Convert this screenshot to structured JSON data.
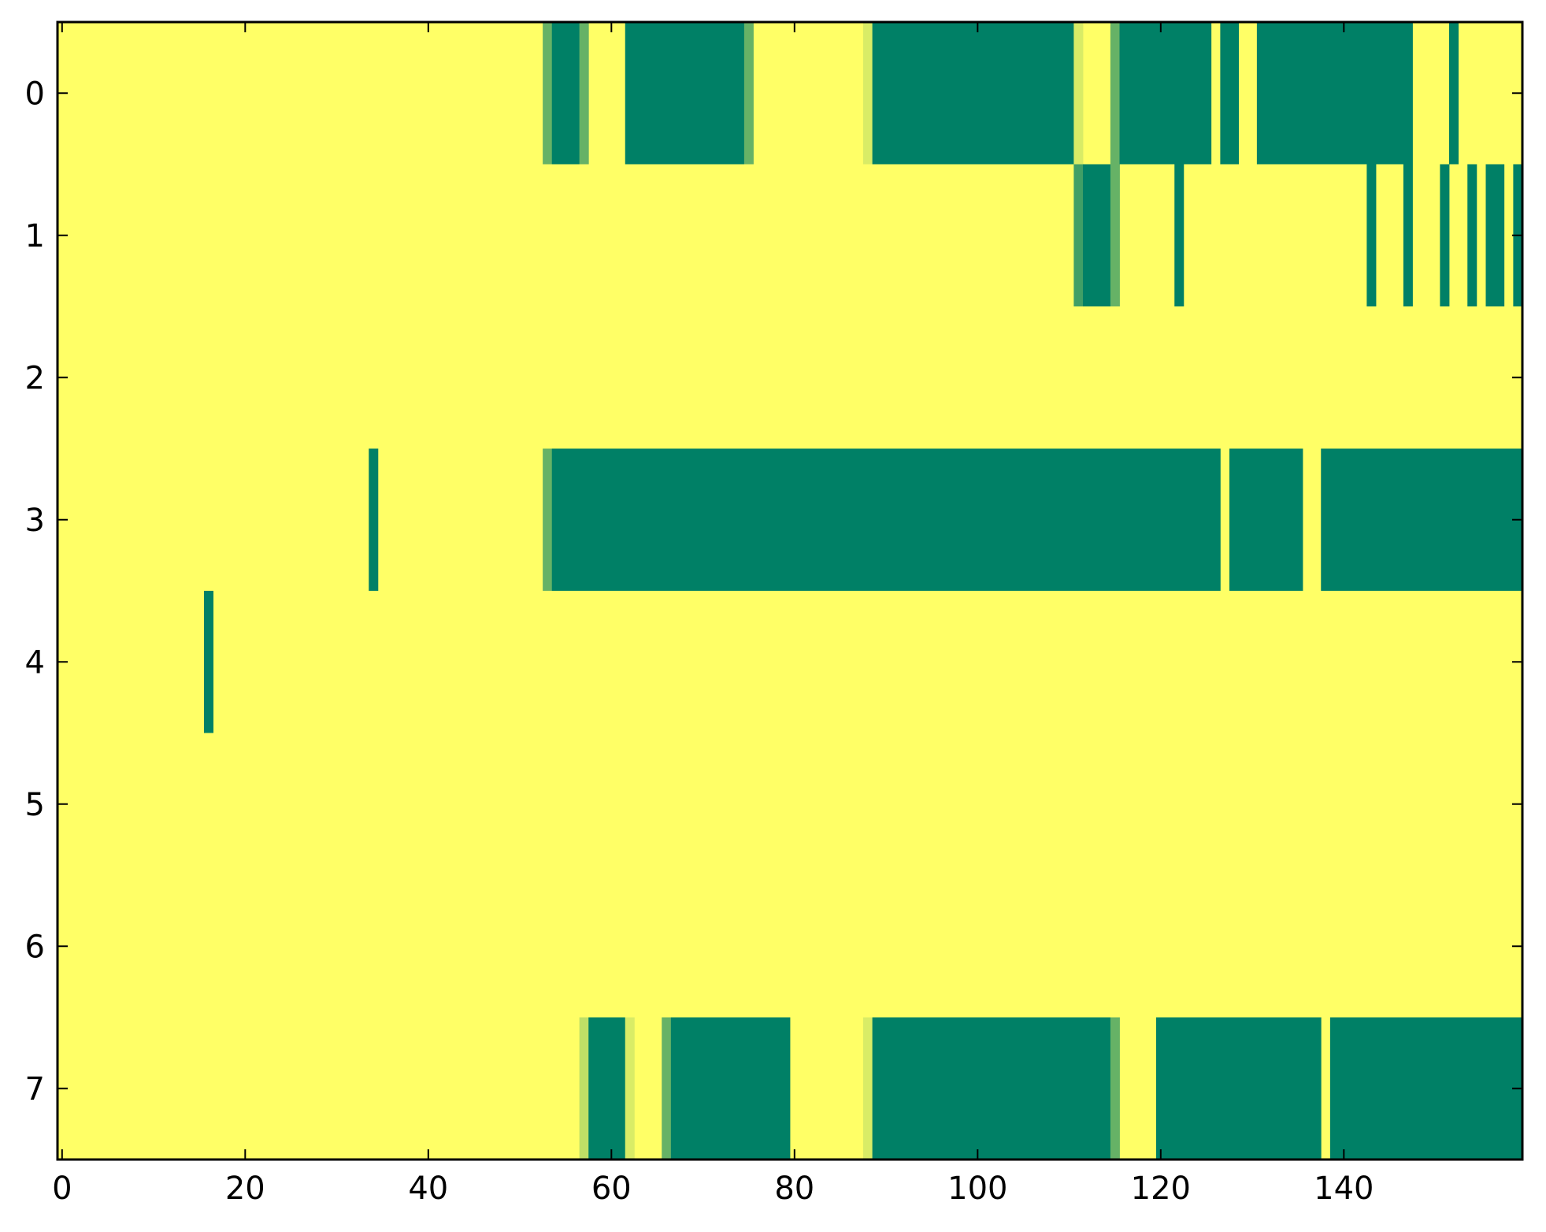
{
  "chart_data": {
    "type": "heatmap",
    "title": "",
    "xlabel": "",
    "ylabel": "",
    "xlim": [
      -0.5,
      159.5
    ],
    "ylim": [
      -0.5,
      7.5
    ],
    "y_inverted": true,
    "xticks": [
      0,
      20,
      40,
      60,
      80,
      100,
      120,
      140
    ],
    "xtick_labels": [
      "0",
      "20",
      "40",
      "60",
      "80",
      "100",
      "120",
      "140"
    ],
    "yticks": [
      0,
      1,
      2,
      3,
      4,
      5,
      6,
      7
    ],
    "ytick_labels": [
      "0",
      "1",
      "2",
      "3",
      "4",
      "5",
      "6",
      "7"
    ],
    "grid": false,
    "legend": "none",
    "colormap": "summer",
    "background_value": 1.0,
    "background_color": "#ffff66",
    "value_colors": {
      "0.0": "#008066",
      "0.25": "#409f66",
      "0.4": "#66b266",
      "0.75": "#bfdf66",
      "0.85": "#d9ec66",
      "1.0": "#ffff66"
    },
    "segments": [
      {
        "row": 0,
        "x_start": 53,
        "x_end": 53,
        "value": 0.4
      },
      {
        "row": 0,
        "x_start": 54,
        "x_end": 56,
        "value": 0.0
      },
      {
        "row": 0,
        "x_start": 57,
        "x_end": 57,
        "value": 0.4
      },
      {
        "row": 0,
        "x_start": 62,
        "x_end": 74,
        "value": 0.0
      },
      {
        "row": 0,
        "x_start": 75,
        "x_end": 75,
        "value": 0.4
      },
      {
        "row": 0,
        "x_start": 88,
        "x_end": 88,
        "value": 0.85
      },
      {
        "row": 0,
        "x_start": 89,
        "x_end": 110,
        "value": 0.0
      },
      {
        "row": 0,
        "x_start": 111,
        "x_end": 111,
        "value": 0.85
      },
      {
        "row": 0,
        "x_start": 115,
        "x_end": 115,
        "value": 0.4
      },
      {
        "row": 0,
        "x_start": 116,
        "x_end": 125,
        "value": 0.0
      },
      {
        "row": 0,
        "x_start": 127,
        "x_end": 128,
        "value": 0.0
      },
      {
        "row": 0,
        "x_start": 131,
        "x_end": 147,
        "value": 0.0
      },
      {
        "row": 0,
        "x_start": 152,
        "x_end": 152,
        "value": 0.0
      },
      {
        "row": 1,
        "x_start": 111,
        "x_end": 111,
        "value": 0.25
      },
      {
        "row": 1,
        "x_start": 112,
        "x_end": 114,
        "value": 0.0
      },
      {
        "row": 1,
        "x_start": 115,
        "x_end": 115,
        "value": 0.4
      },
      {
        "row": 1,
        "x_start": 122,
        "x_end": 122,
        "value": 0.0
      },
      {
        "row": 1,
        "x_start": 143,
        "x_end": 143,
        "value": 0.0
      },
      {
        "row": 1,
        "x_start": 147,
        "x_end": 147,
        "value": 0.0
      },
      {
        "row": 1,
        "x_start": 151,
        "x_end": 151,
        "value": 0.0
      },
      {
        "row": 1,
        "x_start": 154,
        "x_end": 154,
        "value": 0.0
      },
      {
        "row": 1,
        "x_start": 156,
        "x_end": 157,
        "value": 0.0
      },
      {
        "row": 1,
        "x_start": 159,
        "x_end": 159,
        "value": 0.0
      },
      {
        "row": 3,
        "x_start": 34,
        "x_end": 34,
        "value": 0.0
      },
      {
        "row": 3,
        "x_start": 53,
        "x_end": 53,
        "value": 0.4
      },
      {
        "row": 3,
        "x_start": 54,
        "x_end": 126,
        "value": 0.0
      },
      {
        "row": 3,
        "x_start": 128,
        "x_end": 135,
        "value": 0.0
      },
      {
        "row": 3,
        "x_start": 138,
        "x_end": 159,
        "value": 0.0
      },
      {
        "row": 4,
        "x_start": 16,
        "x_end": 16,
        "value": 0.0
      },
      {
        "row": 7,
        "x_start": 57,
        "x_end": 57,
        "value": 0.75
      },
      {
        "row": 7,
        "x_start": 58,
        "x_end": 61,
        "value": 0.0
      },
      {
        "row": 7,
        "x_start": 62,
        "x_end": 62,
        "value": 0.85
      },
      {
        "row": 7,
        "x_start": 66,
        "x_end": 66,
        "value": 0.4
      },
      {
        "row": 7,
        "x_start": 67,
        "x_end": 79,
        "value": 0.0
      },
      {
        "row": 7,
        "x_start": 88,
        "x_end": 88,
        "value": 0.85
      },
      {
        "row": 7,
        "x_start": 89,
        "x_end": 114,
        "value": 0.0
      },
      {
        "row": 7,
        "x_start": 115,
        "x_end": 115,
        "value": 0.4
      },
      {
        "row": 7,
        "x_start": 120,
        "x_end": 137,
        "value": 0.0
      },
      {
        "row": 7,
        "x_start": 139,
        "x_end": 159,
        "value": 0.0
      }
    ]
  }
}
